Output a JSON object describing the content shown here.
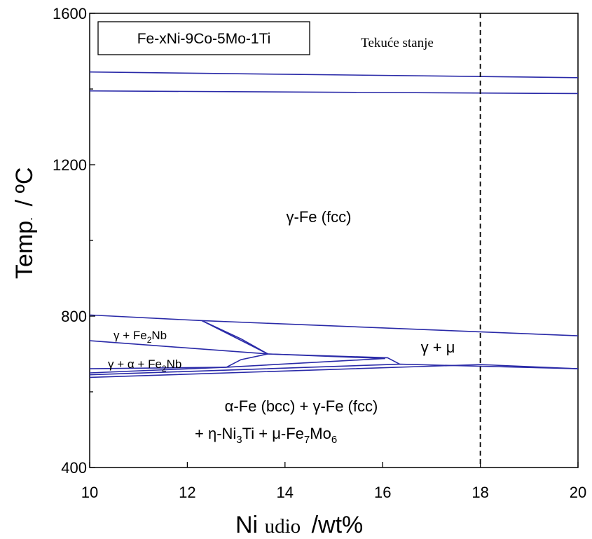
{
  "chart_data": {
    "type": "line",
    "title": "Fe-xNi-9Co-5Mo-1Ti",
    "xlabel_prefix": "Ni",
    "xlabel_mid": "udio",
    "xlabel_suffix": "/wt%",
    "ylabel_main": "Temp",
    "ylabel_dot": ".",
    "ylabel_unit": "/ ºC",
    "xlim": [
      10,
      20
    ],
    "ylim": [
      400,
      1600
    ],
    "xticks": [
      10,
      12,
      14,
      16,
      18,
      20
    ],
    "yticks": [
      400,
      800,
      1200,
      1600
    ],
    "grid": false,
    "line_color": "#2a2aa8",
    "marker_line": {
      "x": 18,
      "style": "dashed",
      "color": "#000000"
    },
    "series": [
      {
        "points": [
          [
            10,
            1445
          ],
          [
            20,
            1430
          ]
        ]
      },
      {
        "points": [
          [
            10,
            1395
          ],
          [
            20,
            1388
          ]
        ]
      },
      {
        "points": [
          [
            10,
            803
          ],
          [
            12.3,
            788
          ],
          [
            20,
            748
          ]
        ]
      },
      {
        "points": [
          [
            12.3,
            788
          ],
          [
            13.1,
            740
          ],
          [
            13.65,
            700
          ]
        ]
      },
      {
        "points": [
          [
            12.3,
            788
          ],
          [
            13.65,
            700
          ]
        ]
      },
      {
        "points": [
          [
            10,
            735
          ],
          [
            13.65,
            700
          ],
          [
            16.1,
            690
          ],
          [
            16.35,
            673
          ]
        ]
      },
      {
        "points": [
          [
            10,
            661
          ],
          [
            12.8,
            665
          ],
          [
            16.05,
            688
          ]
        ]
      },
      {
        "points": [
          [
            12.8,
            665
          ],
          [
            13.1,
            685
          ],
          [
            13.65,
            700
          ]
        ]
      },
      {
        "points": [
          [
            13.65,
            700
          ],
          [
            16.05,
            688
          ]
        ]
      },
      {
        "points": [
          [
            10,
            650
          ],
          [
            12.8,
            665
          ]
        ]
      },
      {
        "points": [
          [
            10,
            645
          ],
          [
            16.35,
            673
          ],
          [
            20,
            661
          ]
        ]
      },
      {
        "points": [
          [
            10,
            638
          ],
          [
            18,
            672
          ],
          [
            20,
            661
          ]
        ]
      }
    ],
    "annotations": [
      {
        "id": "liquid",
        "text": "Tekuće stanje"
      },
      {
        "id": "gamma_fe",
        "parts": [
          "γ-Fe (fcc)"
        ]
      },
      {
        "id": "gamma_mu",
        "parts": [
          "γ + μ"
        ]
      },
      {
        "id": "gamma_fe2nb",
        "parts": [
          "γ + Fe",
          "2",
          "Nb"
        ]
      },
      {
        "id": "gamma_alpha_fe2nb",
        "parts": [
          "γ + α + Fe",
          "2",
          "Nb"
        ]
      },
      {
        "id": "low_line1",
        "parts": [
          "α-Fe (bcc) + γ-Fe (fcc)"
        ]
      },
      {
        "id": "low_line2",
        "parts": [
          "+ η-Ni",
          "3",
          "Ti + μ-Fe",
          "7",
          "Mo",
          "6"
        ]
      }
    ]
  }
}
